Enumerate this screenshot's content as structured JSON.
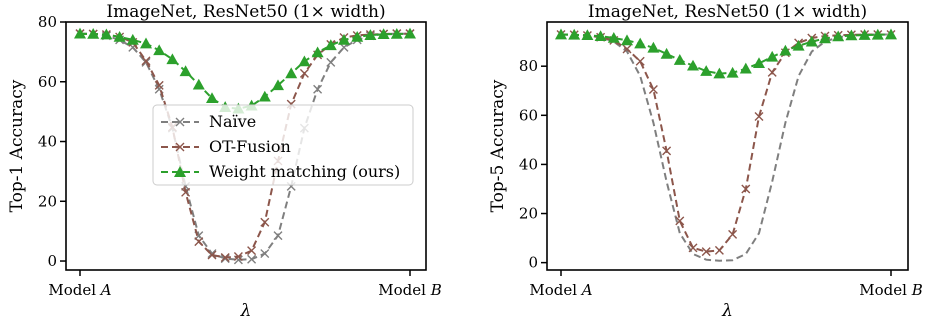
{
  "chart_data": [
    {
      "type": "line",
      "title": "ImageNet, ResNet50 (1× width)",
      "xlabel": "λ",
      "ylabel": "Top-1 Accuracy",
      "xlim": [
        0,
        1
      ],
      "ylim": [
        -3,
        80
      ],
      "yticks": [
        0,
        20,
        40,
        60,
        80
      ],
      "xticks": [
        {
          "value": 0,
          "prefix": "Model ",
          "var": "A"
        },
        {
          "value": 1,
          "prefix": "Model ",
          "var": "B"
        }
      ],
      "legend": "center",
      "x": [
        0,
        0.04,
        0.08,
        0.12,
        0.16,
        0.2,
        0.24,
        0.28,
        0.32,
        0.36,
        0.4,
        0.44,
        0.48,
        0.52,
        0.56,
        0.6,
        0.64,
        0.68,
        0.72,
        0.76,
        0.8,
        0.84,
        0.88,
        0.92,
        0.96,
        1.0
      ],
      "series": [
        {
          "name": "Naïve",
          "color": "#7f7f7f",
          "marker": "x",
          "values": [
            76.1,
            76.0,
            75.4,
            74.0,
            71.5,
            66.5,
            57.5,
            44.5,
            25.0,
            8.5,
            2.5,
            0.8,
            0.4,
            0.6,
            2.5,
            8.5,
            25.0,
            44.5,
            57.5,
            66.5,
            71.5,
            74.0,
            75.4,
            76.0,
            76.1,
            76.1
          ]
        },
        {
          "name": "OT-Fusion",
          "color": "#8c564b",
          "marker": "x",
          "values": [
            76.1,
            76.0,
            75.8,
            75.0,
            73.2,
            67.0,
            58.8,
            44.8,
            23.0,
            6.5,
            2.0,
            1.2,
            1.5,
            3.5,
            13.0,
            33.5,
            52.5,
            62.8,
            69.0,
            72.5,
            74.8,
            75.5,
            75.8,
            76.0,
            76.1,
            76.1
          ]
        },
        {
          "name": "Weight matching (ours)",
          "color": "#2ca02c",
          "marker": "triangle",
          "values": [
            76.1,
            76.0,
            75.8,
            75.0,
            74.0,
            72.8,
            70.5,
            67.5,
            63.5,
            59.0,
            54.5,
            51.5,
            51.0,
            52.0,
            55.0,
            58.8,
            62.8,
            66.8,
            69.8,
            72.2,
            74.0,
            75.0,
            75.6,
            75.9,
            76.0,
            76.1
          ]
        }
      ]
    },
    {
      "type": "line",
      "title": "ImageNet, ResNet50 (1× width)",
      "xlabel": "λ",
      "ylabel": "Top-5 Accuracy",
      "xlim": [
        0,
        1
      ],
      "ylim": [
        -3,
        98
      ],
      "yticks": [
        0,
        20,
        40,
        60,
        80
      ],
      "xticks": [
        {
          "value": 0,
          "prefix": "Model ",
          "var": "A"
        },
        {
          "value": 1,
          "prefix": "Model ",
          "var": "B"
        }
      ],
      "x": [
        0,
        0.04,
        0.08,
        0.12,
        0.16,
        0.2,
        0.24,
        0.28,
        0.32,
        0.36,
        0.4,
        0.44,
        0.48,
        0.52,
        0.56,
        0.6,
        0.64,
        0.68,
        0.72,
        0.76,
        0.8,
        0.84,
        0.88,
        0.92,
        0.96,
        1.0
      ],
      "series": [
        {
          "name": "Naïve",
          "color": "#7f7f7f",
          "marker": "none",
          "values": [
            92.9,
            92.8,
            92.5,
            91.8,
            90.0,
            86.0,
            76.0,
            57.0,
            33.0,
            12.0,
            3.5,
            1.2,
            0.8,
            1.0,
            3.5,
            12.0,
            33.0,
            57.0,
            76.0,
            86.0,
            90.0,
            91.8,
            92.5,
            92.8,
            92.9,
            92.9
          ]
        },
        {
          "name": "OT-Fusion",
          "color": "#8c564b",
          "marker": "x",
          "values": [
            92.9,
            92.8,
            92.5,
            91.8,
            90.5,
            87.0,
            82.0,
            70.5,
            45.5,
            17.0,
            6.0,
            4.5,
            5.0,
            11.5,
            30.0,
            59.5,
            77.5,
            85.5,
            89.5,
            91.5,
            92.3,
            92.6,
            92.8,
            92.9,
            92.9,
            92.9
          ]
        },
        {
          "name": "Weight matching (ours)",
          "color": "#2ca02c",
          "marker": "triangle",
          "values": [
            92.9,
            92.8,
            92.6,
            92.2,
            91.5,
            90.5,
            89.2,
            87.5,
            85.0,
            82.5,
            80.2,
            78.0,
            77.0,
            77.3,
            79.0,
            81.2,
            83.8,
            86.3,
            88.3,
            90.0,
            91.3,
            92.1,
            92.5,
            92.7,
            92.8,
            92.9
          ]
        }
      ]
    }
  ]
}
